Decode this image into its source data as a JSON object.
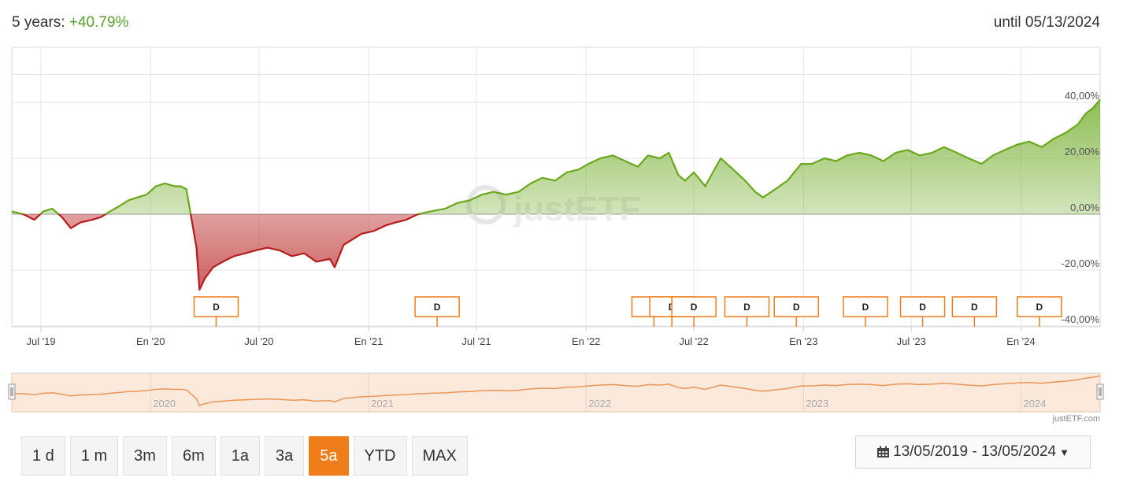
{
  "header": {
    "period_label": "5 years:",
    "performance": "+40.79%",
    "until_label": "until 05/13/2024"
  },
  "chart_data": {
    "type": "area",
    "title": "",
    "xlabel": "",
    "ylabel": "",
    "ylim": [
      -40,
      50
    ],
    "y_tick_labels": [
      "40,00%",
      "20,00%",
      "0,00%",
      "-20,00%",
      "-40,00%"
    ],
    "y_ticks": [
      40,
      20,
      0,
      -20,
      -40
    ],
    "x_tick_labels": [
      "Jul '19",
      "En '20",
      "Jul '20",
      "En '21",
      "Jul '21",
      "En '22",
      "Jul '22",
      "En '23",
      "Jul '23",
      "En '24"
    ],
    "x_tick_dates": [
      "2019-07-01",
      "2020-01-01",
      "2020-07-01",
      "2021-01-01",
      "2021-07-01",
      "2022-01-01",
      "2022-07-01",
      "2023-01-01",
      "2023-07-01",
      "2024-01-01"
    ],
    "x_range": [
      "2019-05-13",
      "2024-05-13"
    ],
    "grid": true,
    "colors": {
      "positive": "#69a81c",
      "negative": "#b71c1c",
      "navigator": "#e8955a"
    },
    "series": [
      {
        "name": "",
        "x": [
          "2019-05-13",
          "2019-06-01",
          "2019-06-20",
          "2019-07-05",
          "2019-07-20",
          "2019-08-05",
          "2019-08-20",
          "2019-09-05",
          "2019-09-25",
          "2019-10-10",
          "2019-10-25",
          "2019-11-10",
          "2019-11-25",
          "2019-12-10",
          "2019-12-25",
          "2020-01-10",
          "2020-01-25",
          "2020-02-10",
          "2020-02-20",
          "2020-03-01",
          "2020-03-10",
          "2020-03-18",
          "2020-03-23",
          "2020-04-01",
          "2020-04-15",
          "2020-05-01",
          "2020-05-20",
          "2020-06-08",
          "2020-06-25",
          "2020-07-15",
          "2020-08-05",
          "2020-08-25",
          "2020-09-15",
          "2020-10-05",
          "2020-10-28",
          "2020-11-05",
          "2020-11-20",
          "2020-12-05",
          "2020-12-20",
          "2021-01-10",
          "2021-01-30",
          "2021-02-15",
          "2021-03-05",
          "2021-03-25",
          "2021-04-15",
          "2021-05-10",
          "2021-05-30",
          "2021-06-20",
          "2021-07-10",
          "2021-07-30",
          "2021-08-20",
          "2021-09-10",
          "2021-09-30",
          "2021-10-20",
          "2021-11-10",
          "2021-11-30",
          "2021-12-20",
          "2022-01-05",
          "2022-01-25",
          "2022-02-15",
          "2022-03-08",
          "2022-03-29",
          "2022-04-15",
          "2022-05-05",
          "2022-05-20",
          "2022-06-05",
          "2022-06-16",
          "2022-07-01",
          "2022-07-20",
          "2022-08-15",
          "2022-09-05",
          "2022-09-25",
          "2022-10-12",
          "2022-10-25",
          "2022-11-15",
          "2022-12-05",
          "2022-12-28",
          "2023-01-15",
          "2023-02-05",
          "2023-02-25",
          "2023-03-15",
          "2023-04-05",
          "2023-04-25",
          "2023-05-15",
          "2023-06-05",
          "2023-06-25",
          "2023-07-15",
          "2023-08-05",
          "2023-08-25",
          "2023-09-15",
          "2023-10-05",
          "2023-10-27",
          "2023-11-15",
          "2023-12-05",
          "2023-12-27",
          "2024-01-15",
          "2024-02-05",
          "2024-02-25",
          "2024-03-15",
          "2024-04-05",
          "2024-04-19",
          "2024-05-01",
          "2024-05-13"
        ],
        "y": [
          1,
          0,
          -2,
          1,
          2,
          -1,
          -5,
          -3,
          -2,
          -1,
          1,
          3,
          5,
          6,
          7,
          10,
          11,
          10,
          10,
          9,
          -2,
          -12,
          -27,
          -23,
          -19,
          -17,
          -15,
          -14,
          -13,
          -12,
          -13,
          -15,
          -14,
          -17,
          -16,
          -19,
          -11,
          -9,
          -7,
          -6,
          -4,
          -3,
          -2,
          0,
          1,
          2,
          4,
          5,
          7,
          8,
          7,
          8,
          11,
          13,
          12,
          15,
          16,
          18,
          20,
          21,
          19,
          17,
          21,
          20,
          22,
          14,
          12,
          15,
          10,
          20,
          16,
          12,
          8,
          6,
          9,
          12,
          18,
          18,
          20,
          19,
          21,
          22,
          21,
          19,
          22,
          23,
          21,
          22,
          24,
          22,
          20,
          18,
          21,
          23,
          25,
          26,
          24,
          27,
          29,
          32,
          36,
          38,
          41
        ]
      }
    ]
  },
  "dividends": {
    "marker_label": "D",
    "count": 11
  },
  "navigator": {
    "year_labels": [
      "2020",
      "2021",
      "2022",
      "2023",
      "2024"
    ]
  },
  "credit": "justETF.com",
  "watermark": "justETF",
  "range_buttons": [
    "1 d",
    "1 m",
    "3m",
    "6m",
    "1a",
    "3a",
    "5a",
    "YTD",
    "MAX"
  ],
  "active_range": "5a",
  "date_range": "13/05/2019 - 13/05/2024",
  "icons": {
    "calendar": "calendar-icon",
    "dropdown": "caret-down-icon"
  }
}
